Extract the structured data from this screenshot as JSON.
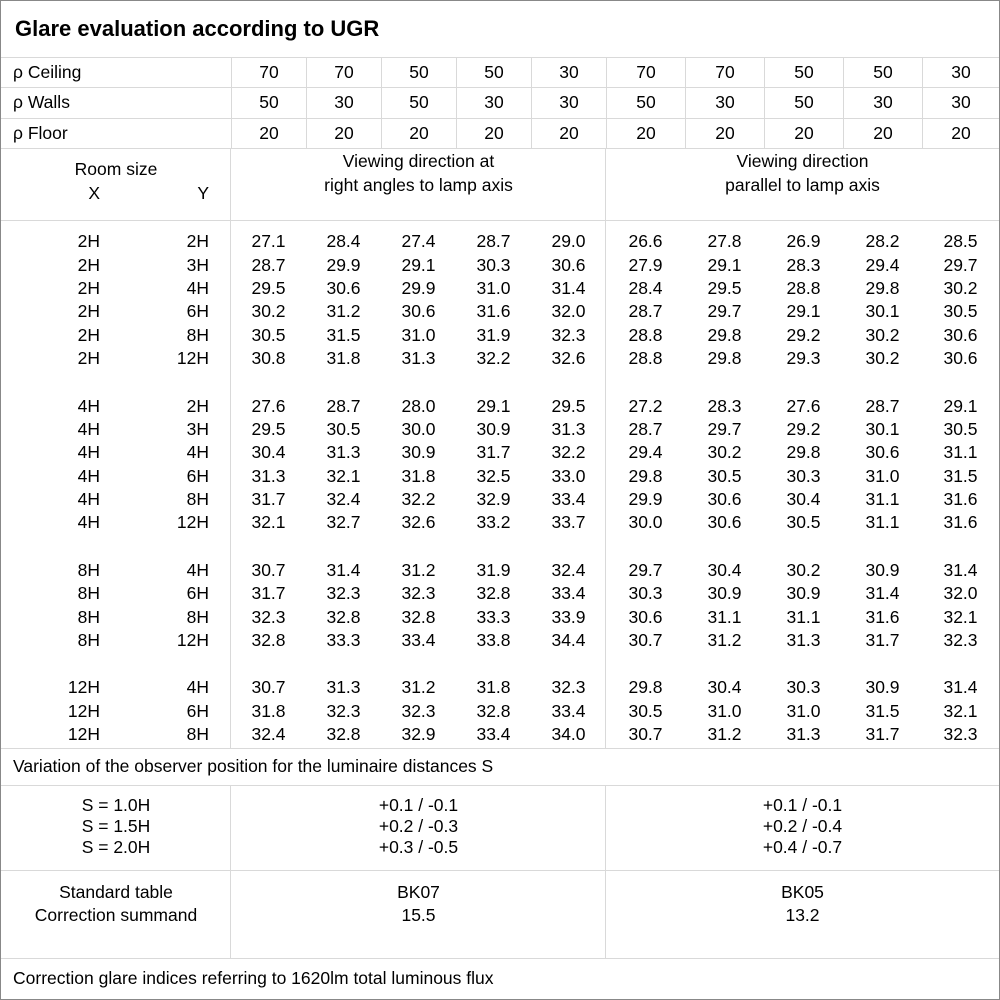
{
  "title": "Glare evaluation according to UGR",
  "colors": {
    "grid_line": "#d9d9d9",
    "outer_border": "#888888",
    "text": "#000000",
    "background": "#ffffff"
  },
  "reflectance": {
    "rows": [
      {
        "label": "ρ Ceiling",
        "values": [
          "70",
          "70",
          "50",
          "50",
          "30",
          "70",
          "70",
          "50",
          "50",
          "30"
        ]
      },
      {
        "label": "ρ Walls",
        "values": [
          "50",
          "30",
          "50",
          "30",
          "30",
          "50",
          "30",
          "50",
          "30",
          "30"
        ]
      },
      {
        "label": "ρ Floor",
        "values": [
          "20",
          "20",
          "20",
          "20",
          "20",
          "20",
          "20",
          "20",
          "20",
          "20"
        ]
      }
    ]
  },
  "room_header": {
    "room_size": "Room size",
    "x": "X",
    "y": "Y"
  },
  "groups": {
    "left_line1": "Viewing direction at",
    "left_line2": "right angles to lamp axis",
    "right_line1": "Viewing direction",
    "right_line2": "parallel to lamp axis"
  },
  "ugr_blocks": [
    {
      "rows": [
        {
          "x": "2H",
          "y": "2H",
          "left": [
            "27.1",
            "28.4",
            "27.4",
            "28.7",
            "29.0"
          ],
          "right": [
            "26.6",
            "27.8",
            "26.9",
            "28.2",
            "28.5"
          ]
        },
        {
          "x": "2H",
          "y": "3H",
          "left": [
            "28.7",
            "29.9",
            "29.1",
            "30.3",
            "30.6"
          ],
          "right": [
            "27.9",
            "29.1",
            "28.3",
            "29.4",
            "29.7"
          ]
        },
        {
          "x": "2H",
          "y": "4H",
          "left": [
            "29.5",
            "30.6",
            "29.9",
            "31.0",
            "31.4"
          ],
          "right": [
            "28.4",
            "29.5",
            "28.8",
            "29.8",
            "30.2"
          ]
        },
        {
          "x": "2H",
          "y": "6H",
          "left": [
            "30.2",
            "31.2",
            "30.6",
            "31.6",
            "32.0"
          ],
          "right": [
            "28.7",
            "29.7",
            "29.1",
            "30.1",
            "30.5"
          ]
        },
        {
          "x": "2H",
          "y": "8H",
          "left": [
            "30.5",
            "31.5",
            "31.0",
            "31.9",
            "32.3"
          ],
          "right": [
            "28.8",
            "29.8",
            "29.2",
            "30.2",
            "30.6"
          ]
        },
        {
          "x": "2H",
          "y": "12H",
          "left": [
            "30.8",
            "31.8",
            "31.3",
            "32.2",
            "32.6"
          ],
          "right": [
            "28.8",
            "29.8",
            "29.3",
            "30.2",
            "30.6"
          ]
        }
      ]
    },
    {
      "rows": [
        {
          "x": "4H",
          "y": "2H",
          "left": [
            "27.6",
            "28.7",
            "28.0",
            "29.1",
            "29.5"
          ],
          "right": [
            "27.2",
            "28.3",
            "27.6",
            "28.7",
            "29.1"
          ]
        },
        {
          "x": "4H",
          "y": "3H",
          "left": [
            "29.5",
            "30.5",
            "30.0",
            "30.9",
            "31.3"
          ],
          "right": [
            "28.7",
            "29.7",
            "29.2",
            "30.1",
            "30.5"
          ]
        },
        {
          "x": "4H",
          "y": "4H",
          "left": [
            "30.4",
            "31.3",
            "30.9",
            "31.7",
            "32.2"
          ],
          "right": [
            "29.4",
            "30.2",
            "29.8",
            "30.6",
            "31.1"
          ]
        },
        {
          "x": "4H",
          "y": "6H",
          "left": [
            "31.3",
            "32.1",
            "31.8",
            "32.5",
            "33.0"
          ],
          "right": [
            "29.8",
            "30.5",
            "30.3",
            "31.0",
            "31.5"
          ]
        },
        {
          "x": "4H",
          "y": "8H",
          "left": [
            "31.7",
            "32.4",
            "32.2",
            "32.9",
            "33.4"
          ],
          "right": [
            "29.9",
            "30.6",
            "30.4",
            "31.1",
            "31.6"
          ]
        },
        {
          "x": "4H",
          "y": "12H",
          "left": [
            "32.1",
            "32.7",
            "32.6",
            "33.2",
            "33.7"
          ],
          "right": [
            "30.0",
            "30.6",
            "30.5",
            "31.1",
            "31.6"
          ]
        }
      ]
    },
    {
      "rows": [
        {
          "x": "8H",
          "y": "4H",
          "left": [
            "30.7",
            "31.4",
            "31.2",
            "31.9",
            "32.4"
          ],
          "right": [
            "29.7",
            "30.4",
            "30.2",
            "30.9",
            "31.4"
          ]
        },
        {
          "x": "8H",
          "y": "6H",
          "left": [
            "31.7",
            "32.3",
            "32.3",
            "32.8",
            "33.4"
          ],
          "right": [
            "30.3",
            "30.9",
            "30.9",
            "31.4",
            "32.0"
          ]
        },
        {
          "x": "8H",
          "y": "8H",
          "left": [
            "32.3",
            "32.8",
            "32.8",
            "33.3",
            "33.9"
          ],
          "right": [
            "30.6",
            "31.1",
            "31.1",
            "31.6",
            "32.1"
          ]
        },
        {
          "x": "8H",
          "y": "12H",
          "left": [
            "32.8",
            "33.3",
            "33.4",
            "33.8",
            "34.4"
          ],
          "right": [
            "30.7",
            "31.2",
            "31.3",
            "31.7",
            "32.3"
          ]
        }
      ]
    },
    {
      "rows": [
        {
          "x": "12H",
          "y": "4H",
          "left": [
            "30.7",
            "31.3",
            "31.2",
            "31.8",
            "32.3"
          ],
          "right": [
            "29.8",
            "30.4",
            "30.3",
            "30.9",
            "31.4"
          ]
        },
        {
          "x": "12H",
          "y": "6H",
          "left": [
            "31.8",
            "32.3",
            "32.3",
            "32.8",
            "33.4"
          ],
          "right": [
            "30.5",
            "31.0",
            "31.0",
            "31.5",
            "32.1"
          ]
        },
        {
          "x": "12H",
          "y": "8H",
          "left": [
            "32.4",
            "32.8",
            "32.9",
            "33.4",
            "34.0"
          ],
          "right": [
            "30.7",
            "31.2",
            "31.3",
            "31.7",
            "32.3"
          ]
        }
      ]
    }
  ],
  "variation_note": "Variation of the observer position for the luminaire distances S",
  "variation_rows": [
    {
      "label": "S = 1.0H",
      "left": "+0.1 / -0.1",
      "right": "+0.1 / -0.1"
    },
    {
      "label": "S = 1.5H",
      "left": "+0.2 / -0.3",
      "right": "+0.2 / -0.4"
    },
    {
      "label": "S = 2.0H",
      "left": "+0.3 / -0.5",
      "right": "+0.4 / -0.7"
    }
  ],
  "standard_rows": [
    {
      "label": "Standard table",
      "left": "BK07",
      "right": "BK05"
    },
    {
      "label": "Correction summand",
      "left": "15.5",
      "right": "13.2"
    }
  ],
  "footer_note": "Correction glare indices referring to 1620lm total luminous flux"
}
